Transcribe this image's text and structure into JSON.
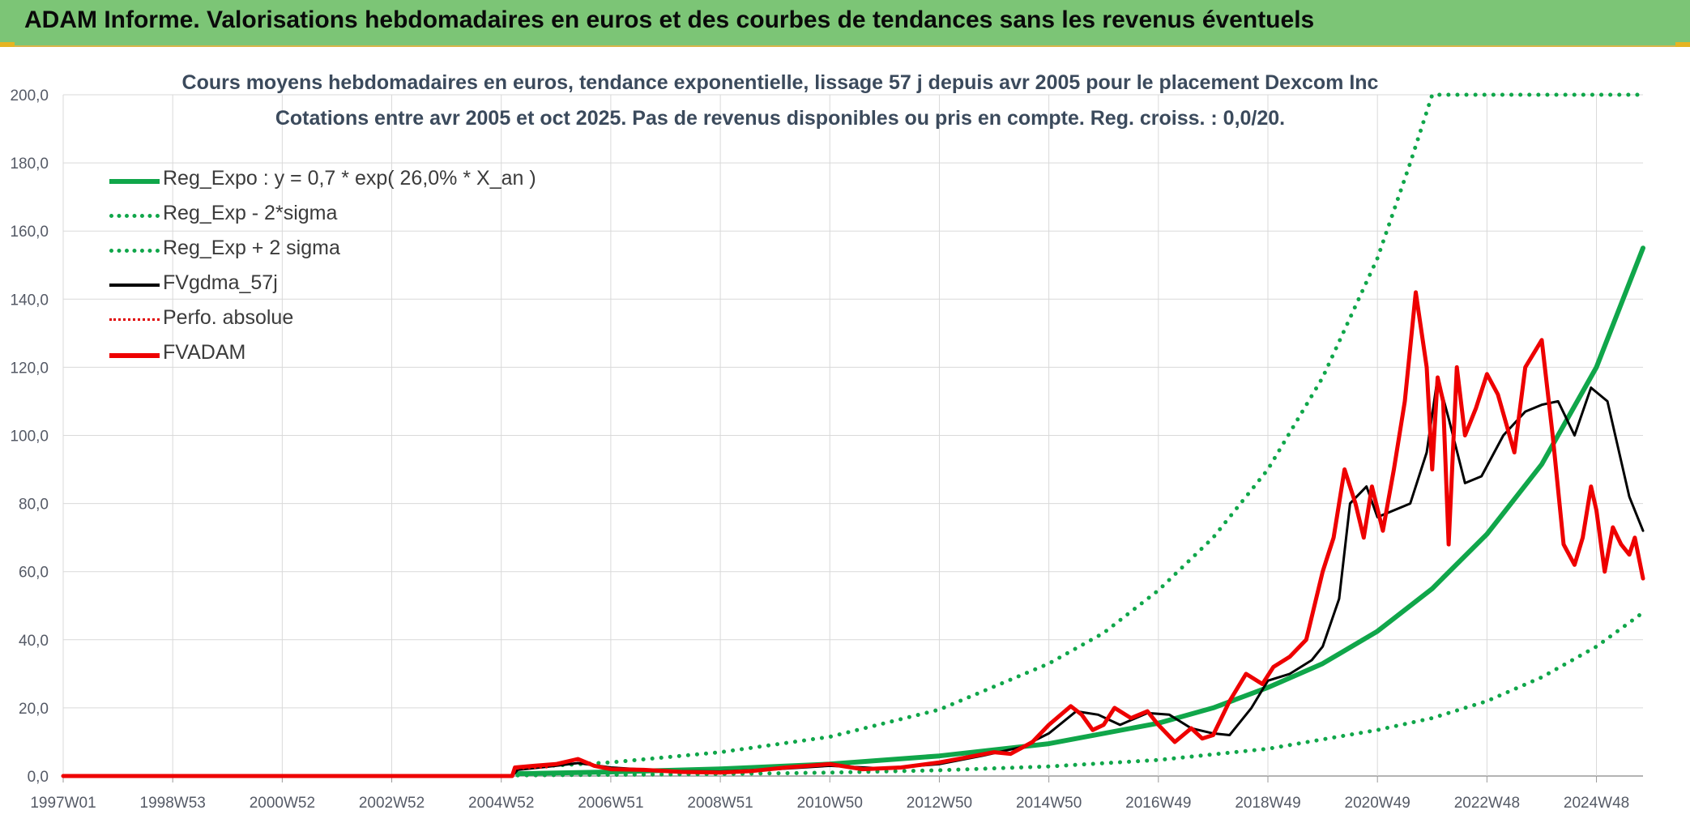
{
  "banner": {
    "title": "ADAM Informe. Valorisations hebdomadaires en euros et des courbes de tendances sans les revenus éventuels"
  },
  "chart_data": {
    "type": "line",
    "title": "Cours moyens hebdomadaires en euros, tendance exponentielle, lissage 57 j depuis avr 2005 pour le placement Dexcom Inc",
    "subtitle": "Cotations entre avr 2005 et oct 2025. Pas de revenus disponibles ou pris en compte. Reg. croiss. : 0,0/20.",
    "xlabel": "",
    "ylabel": "",
    "ylim": [
      0,
      200
    ],
    "xlim": [
      1997.0,
      2025.85
    ],
    "grid": true,
    "legend_position": "top-left",
    "y_ticks": [
      "0,0",
      "20,0",
      "40,0",
      "60,0",
      "80,0",
      "100,0",
      "120,0",
      "140,0",
      "160,0",
      "180,0",
      "200,0"
    ],
    "x_ticks": [
      {
        "label": "1997W01",
        "x": 1997.0
      },
      {
        "label": "1998W53",
        "x": 1999.0
      },
      {
        "label": "2000W52",
        "x": 2001.0
      },
      {
        "label": "2002W52",
        "x": 2003.0
      },
      {
        "label": "2004W52",
        "x": 2005.0
      },
      {
        "label": "2006W51",
        "x": 2007.0
      },
      {
        "label": "2008W51",
        "x": 2009.0
      },
      {
        "label": "2010W50",
        "x": 2011.0
      },
      {
        "label": "2012W50",
        "x": 2013.0
      },
      {
        "label": "2014W50",
        "x": 2015.0
      },
      {
        "label": "2016W49",
        "x": 2017.0
      },
      {
        "label": "2018W49",
        "x": 2019.0
      },
      {
        "label": "2020W49",
        "x": 2021.0
      },
      {
        "label": "2022W48",
        "x": 2023.0
      },
      {
        "label": "2024W48",
        "x": 2025.0
      }
    ],
    "series": [
      {
        "name": "Reg_Expo : y = 0,7 * exp( 26,0% *  X_an )",
        "color": "#10a64a",
        "style": "solid",
        "width": 6,
        "x": [
          2005.3,
          2007,
          2009,
          2011,
          2013,
          2015,
          2017,
          2018,
          2019,
          2020,
          2021,
          2022,
          2023,
          2024,
          2025,
          2025.85
        ],
        "values": [
          0.7,
          1.2,
          2.1,
          3.5,
          5.9,
          9.5,
          15.5,
          20.0,
          26.0,
          33.0,
          42.5,
          55.0,
          71.0,
          91.5,
          120.0,
          155.0
        ]
      },
      {
        "name": "Reg_Exp - 2*sigma",
        "color": "#10a64a",
        "style": "dotted",
        "width": 5,
        "x": [
          2005.3,
          2007,
          2009,
          2011,
          2013,
          2015,
          2017,
          2019,
          2021,
          2022,
          2023,
          2024,
          2025,
          2025.85
        ],
        "values": [
          0.2,
          0.35,
          0.6,
          1.0,
          1.7,
          2.8,
          4.7,
          8.0,
          13.5,
          17.0,
          22.0,
          29.0,
          38.0,
          48.0
        ]
      },
      {
        "name": "Reg_Exp + 2 sigma",
        "color": "#10a64a",
        "style": "dotted",
        "width": 5,
        "x": [
          2005.3,
          2007,
          2009,
          2011,
          2013,
          2015,
          2016,
          2017,
          2018,
          2019,
          2020,
          2021,
          2021.6,
          2022,
          2025.85
        ],
        "values": [
          2.5,
          4.0,
          7.0,
          11.5,
          19.5,
          33.0,
          42.0,
          54.5,
          70.0,
          90.0,
          117.0,
          152.0,
          180.0,
          200.0,
          200.0
        ]
      },
      {
        "name": "FVgdma_57j",
        "color": "#000000",
        "style": "solid",
        "width": 3,
        "x": [
          1997.0,
          2005.2,
          2005.3,
          2006.0,
          2006.4,
          2007.0,
          2008.0,
          2009.0,
          2010.0,
          2011.0,
          2012.0,
          2013.0,
          2013.8,
          2014.5,
          2015.0,
          2015.5,
          2015.9,
          2016.3,
          2016.8,
          2017.2,
          2017.6,
          2018.0,
          2018.3,
          2018.7,
          2019.0,
          2019.4,
          2019.8,
          2020.0,
          2020.3,
          2020.5,
          2020.8,
          2021.0,
          2021.3,
          2021.6,
          2021.9,
          2022.1,
          2022.3,
          2022.6,
          2022.9,
          2023.3,
          2023.7,
          2024.0,
          2024.3,
          2024.6,
          2024.9,
          2025.2,
          2025.6,
          2025.85
        ],
        "values": [
          0,
          0,
          1.8,
          3.0,
          3.8,
          2.5,
          1.5,
          1.3,
          2.0,
          3.0,
          2.2,
          3.5,
          6.0,
          8.5,
          12.5,
          19.0,
          18.0,
          15.0,
          18.5,
          18.0,
          14.0,
          12.5,
          12.0,
          20.0,
          28.0,
          30.0,
          34.0,
          38.0,
          52.0,
          80.0,
          85.0,
          76.0,
          78.0,
          80.0,
          95.0,
          117.0,
          105.0,
          86.0,
          88.0,
          100.0,
          107.0,
          109.0,
          110.0,
          100.0,
          114.0,
          110.0,
          82.0,
          72.0
        ]
      },
      {
        "name": "Perfo. absolue",
        "color": "#e00000",
        "style": "dotted",
        "width": 3,
        "x": [
          2005.3,
          2005.85
        ],
        "values": [
          2.2,
          2.6
        ]
      },
      {
        "name": "FVADAM",
        "color": "#ee0000",
        "style": "solid",
        "width": 5,
        "x": [
          1997.0,
          2005.2,
          2005.25,
          2005.6,
          2006.0,
          2006.4,
          2006.7,
          2007.0,
          2007.6,
          2008.3,
          2009.0,
          2009.6,
          2010.2,
          2011.0,
          2011.6,
          2012.3,
          2013.0,
          2013.5,
          2014.0,
          2014.3,
          2014.7,
          2015.0,
          2015.4,
          2015.6,
          2015.8,
          2016.0,
          2016.2,
          2016.5,
          2016.8,
          2017.0,
          2017.3,
          2017.6,
          2017.8,
          2018.0,
          2018.3,
          2018.6,
          2018.9,
          2019.1,
          2019.4,
          2019.7,
          2020.0,
          2020.2,
          2020.4,
          2020.6,
          2020.75,
          2020.9,
          2021.1,
          2021.3,
          2021.5,
          2021.7,
          2021.9,
          2022.0,
          2022.1,
          2022.2,
          2022.3,
          2022.45,
          2022.6,
          2022.8,
          2023.0,
          2023.2,
          2023.5,
          2023.7,
          2024.0,
          2024.2,
          2024.4,
          2024.6,
          2024.75,
          2024.9,
          2025.0,
          2025.15,
          2025.3,
          2025.45,
          2025.6,
          2025.7,
          2025.85
        ],
        "values": [
          0,
          0,
          2.5,
          3.0,
          3.5,
          5.0,
          3.0,
          2.0,
          1.8,
          1.2,
          1.0,
          1.5,
          2.5,
          3.5,
          2.0,
          2.5,
          4.0,
          5.5,
          7.0,
          6.5,
          10.0,
          15.0,
          20.5,
          18.0,
          13.5,
          15.0,
          20.0,
          17.0,
          19.0,
          15.0,
          10.0,
          14.0,
          11.0,
          12.0,
          22.0,
          30.0,
          27.0,
          32.0,
          35.0,
          40.0,
          60.0,
          70.0,
          90.0,
          80.0,
          70.0,
          85.0,
          72.0,
          90.0,
          110.0,
          142.0,
          120.0,
          90.0,
          117.0,
          110.0,
          68.0,
          120.0,
          100.0,
          108.0,
          118.0,
          112.0,
          95.0,
          120.0,
          128.0,
          100.0,
          68.0,
          62.0,
          70.0,
          85.0,
          78.0,
          60.0,
          73.0,
          68.0,
          65.0,
          70.0,
          58.0
        ]
      }
    ]
  }
}
